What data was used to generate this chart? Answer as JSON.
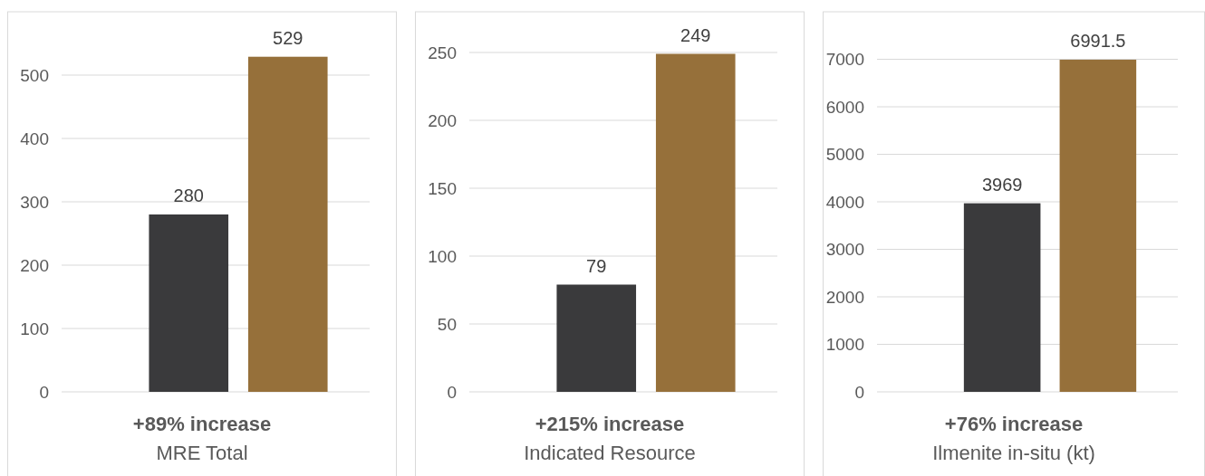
{
  "chart_data": [
    {
      "type": "bar",
      "categories": [
        null,
        null
      ],
      "values": [
        280,
        529
      ],
      "colors": [
        "#3a3a3c",
        "#96703a"
      ],
      "ylim": [
        0,
        600
      ],
      "yticks": [
        0,
        100,
        200,
        300,
        400,
        500
      ],
      "grid": "y",
      "data_labels": true,
      "annotations": [
        "+89% increase"
      ],
      "xlabel": "MRE Total"
    },
    {
      "type": "bar",
      "categories": [
        null,
        null
      ],
      "values": [
        79,
        249
      ],
      "colors": [
        "#3a3a3c",
        "#96703a"
      ],
      "ylim": [
        0,
        280
      ],
      "yticks": [
        0,
        50,
        100,
        150,
        200,
        250
      ],
      "grid": "y",
      "data_labels": true,
      "annotations": [
        "+215% increase"
      ],
      "xlabel": "Indicated Resource"
    },
    {
      "type": "bar",
      "categories": [
        null,
        null
      ],
      "values": [
        3969,
        6991.5
      ],
      "colors": [
        "#3a3a3c",
        "#96703a"
      ],
      "ylim": [
        0,
        8000
      ],
      "yticks": [
        0,
        1000,
        2000,
        3000,
        4000,
        5000,
        6000,
        7000
      ],
      "grid": "y",
      "data_labels": true,
      "annotations": [
        "+76% increase"
      ],
      "xlabel": "Ilmenite in-situ (kt)"
    }
  ]
}
